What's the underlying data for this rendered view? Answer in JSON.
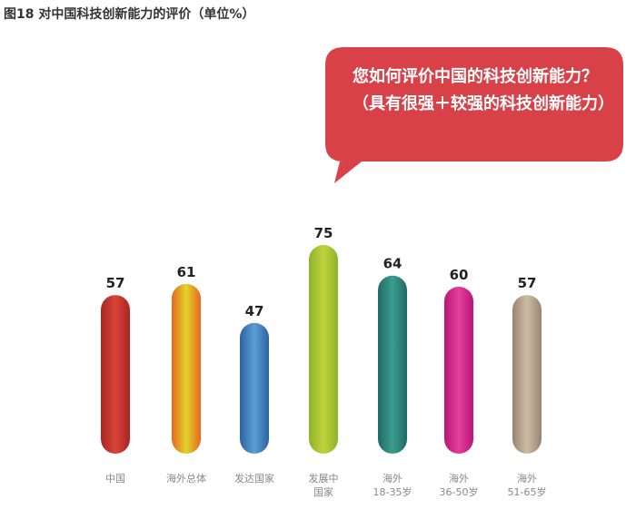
{
  "chart_data": {
    "type": "bar",
    "title": "图18  对中国科技创新能力的评价（单位%）",
    "annotation": "您如何评价中国的科技创新能力？（具有很强＋较强的科技创新能力）",
    "categories": [
      "中国",
      "海外总体",
      "发达国家",
      "发展中\n国家",
      "海外\n18-35岁",
      "海外\n36-50岁",
      "海外\n51-65岁"
    ],
    "values": [
      57,
      61,
      47,
      75,
      64,
      60,
      57
    ],
    "colors": [
      [
        "#a8261f",
        "#d8453a"
      ],
      [
        "#e8661e",
        "#e2d42c"
      ],
      [
        "#2c62a0",
        "#5d9ed3"
      ],
      [
        "#8ab52a",
        "#c3d23e"
      ],
      [
        "#1d6a66",
        "#3c9e8e"
      ],
      [
        "#bb1677",
        "#e23e9e"
      ],
      [
        "#988474",
        "#cdbca4"
      ]
    ],
    "bubble_color": "#d94148",
    "ylim": [
      0,
      80
    ],
    "grid": false
  }
}
